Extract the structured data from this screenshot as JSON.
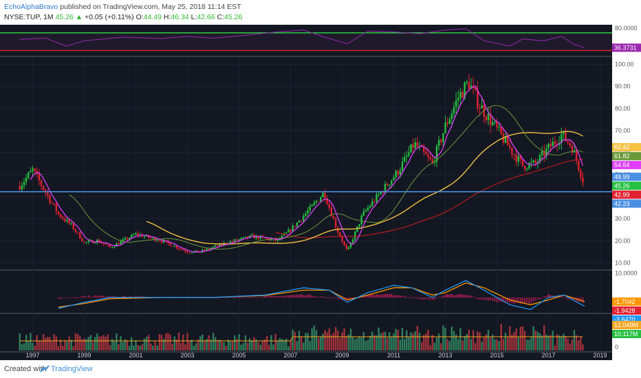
{
  "header": {
    "author": "EchoAlphaBravo",
    "published_text": "published on TradingView.com, May 25, 2018 11:14 EST",
    "symbol": "NYSE:TUP, 1M",
    "last_value": "45.26",
    "change_text": "+0.05 (+0.11%)",
    "open_label": "O:",
    "open_value": "44.49",
    "high_label": "H:",
    "high_value": "46.34",
    "low_label": "L:",
    "low_value": "42.66",
    "close_label": "C:",
    "close_value": "45.26"
  },
  "footer": {
    "created_with": "Created with",
    "brand": "TradingView"
  },
  "colors": {
    "background": "#131722",
    "up_candle": "#26c043",
    "down_candle": "#e1212f",
    "ma_fast": "#e040fb",
    "ma_mid": "#6b9a3a",
    "ma_slow": "#f5c242",
    "ma_long": "#b71c1c",
    "horizontal_line": "#4a90e2",
    "rsi_line": "#9c27b0",
    "rsi_upper": "#2ecc40",
    "rsi_lower": "#e1212f",
    "macd_line": "#2196f3",
    "signal_line": "#ff9800",
    "volume_ma": "#f5a623"
  },
  "chart_data": [
    {
      "type": "line",
      "panel": "rsi",
      "y_ticks": [
        "80.0000"
      ],
      "ylim": [
        20,
        85
      ],
      "series": [
        {
          "x": [
            1996.5,
            1997.5,
            1998.3,
            1999.0,
            2000.5,
            2002.0,
            2003.0,
            2004.0,
            2005.0,
            2006.5,
            2007.5,
            2008.5,
            2009.2,
            2010.0,
            2011.0,
            2012.0,
            2013.0,
            2013.8,
            2014.5,
            2015.5,
            2016.0,
            2016.8,
            2017.5,
            2018.0,
            2018.4
          ],
          "values": [
            55,
            58,
            40,
            52,
            60,
            57,
            62,
            58,
            63,
            72,
            76,
            57,
            45,
            74,
            72,
            68,
            76,
            79,
            52,
            40,
            56,
            52,
            62,
            44,
            36.37
          ]
        }
      ],
      "value_labels": [
        {
          "label": "36.3731",
          "color": "#9c27b0"
        }
      ],
      "reference_lines": [
        70,
        30
      ]
    },
    {
      "type": "line",
      "panel": "price",
      "x_ticks": [
        "1997",
        "1999",
        "2001",
        "2003",
        "2005",
        "2007",
        "2009",
        "2011",
        "2013",
        "2015",
        "2017",
        "2019"
      ],
      "y_ticks": [
        "10.00",
        "20.00",
        "30.00",
        "40.00",
        "50.00",
        "60.00",
        "70.00",
        "80.00",
        "90.00",
        "100.00"
      ],
      "ylim": [
        7,
        103
      ],
      "xlim": [
        1996.0,
        2019.2
      ],
      "series": [
        {
          "x": [
            1996.5,
            1997.0,
            1997.5,
            1998.0,
            1998.5,
            1999.0,
            1999.5,
            2000.0,
            2001.0,
            2002.0,
            2003.0,
            2003.5,
            2004.5,
            2005.5,
            2006.5,
            2007.0,
            2007.8,
            2008.3,
            2008.8,
            2009.2,
            2009.8,
            2010.5,
            2011.2,
            2011.8,
            2012.5,
            2013.0,
            2013.5,
            2013.9,
            2014.3,
            2014.9,
            2015.5,
            2016.0,
            2016.5,
            2017.0,
            2017.5,
            2017.9,
            2018.4
          ],
          "values": [
            45,
            52,
            42,
            32,
            27,
            19,
            20,
            17,
            23,
            20,
            15,
            15,
            19,
            22,
            20,
            25,
            35,
            42,
            25,
            15,
            32,
            42,
            52,
            64,
            55,
            72,
            85,
            92,
            82,
            72,
            62,
            54,
            55,
            62,
            68,
            63,
            45.26
          ]
        }
      ],
      "value_labels": [
        {
          "label": "62.42",
          "color": "#f5c242"
        },
        {
          "label": "61.82",
          "color": "#6b9a3a"
        },
        {
          "label": "54.64",
          "color": "#e040fb"
        },
        {
          "label": "48.99",
          "color": "#4a90e2"
        },
        {
          "label": "45.26",
          "color": "#26c043"
        },
        {
          "label": "42.99",
          "color": "#e1212f"
        },
        {
          "label": "42.23",
          "color": "#4a90e2"
        }
      ],
      "horizontal_line_value": 42.23
    },
    {
      "type": "line",
      "panel": "macd",
      "y_ticks": [
        "10.0000"
      ],
      "ylim": [
        -6,
        11
      ],
      "series": [
        {
          "x": [
            1998.0,
            1999.0,
            2000.0,
            2002.0,
            2004.0,
            2006.0,
            2007.5,
            2008.5,
            2009.2,
            2010.0,
            2011.0,
            2011.7,
            2012.5,
            2013.0,
            2013.8,
            2014.5,
            2015.5,
            2016.3,
            2017.0,
            2017.6,
            2018.4
          ],
          "values": [
            -4.5,
            -2,
            0,
            0,
            0,
            1,
            4,
            3,
            -2,
            2,
            5,
            4,
            0,
            3,
            7,
            3,
            -3,
            -5,
            0,
            1,
            -3.647
          ]
        },
        {
          "x": [
            1998.0,
            1999.0,
            2000.0,
            2002.0,
            2004.0,
            2006.0,
            2007.5,
            2008.5,
            2009.2,
            2010.0,
            2011.0,
            2011.7,
            2012.5,
            2013.0,
            2013.8,
            2014.5,
            2015.5,
            2016.3,
            2017.0,
            2017.6,
            2018.4
          ],
          "values": [
            -4,
            -2.5,
            -0.5,
            0,
            0,
            0.8,
            3,
            3,
            -1,
            1,
            4,
            4,
            1,
            2,
            6,
            4,
            -1,
            -3,
            -1,
            1,
            -1.7042
          ]
        }
      ],
      "value_labels": [
        {
          "label": "-1.7042",
          "color": "#ff9800"
        },
        {
          "label": "-1.9428",
          "color": "#e1212f"
        },
        {
          "label": "-3.6470",
          "color": "#2196f3"
        }
      ]
    },
    {
      "type": "bar",
      "panel": "volume",
      "y_ticks": [
        "0"
      ],
      "value_labels": [
        {
          "label": "12.049M",
          "color": "#f5a623"
        },
        {
          "label": "10.117M",
          "color": "#26c043"
        }
      ]
    }
  ]
}
